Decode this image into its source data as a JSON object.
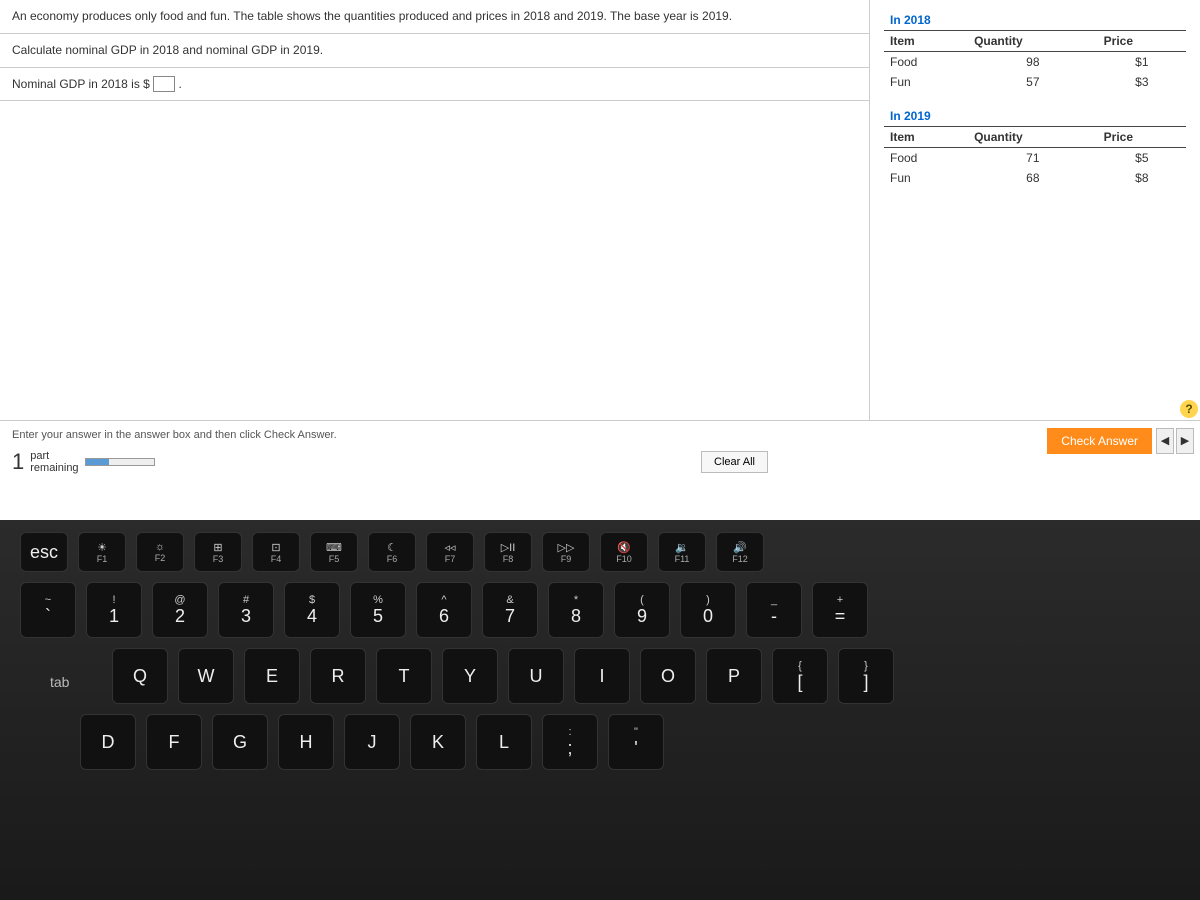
{
  "question": {
    "intro": "An economy produces only food and fun. The table shows the quantities produced and prices in 2018 and 2019. The base year is 2019.",
    "task": "Calculate nominal GDP in 2018 and nominal GDP in 2019.",
    "answer_prompt_prefix": "Nominal GDP in 2018 is $",
    "answer_prompt_suffix": "."
  },
  "tables": {
    "y2018": {
      "title": "In 2018",
      "headers": [
        "Item",
        "Quantity",
        "Price"
      ],
      "rows": [
        [
          "Food",
          "98",
          "$1"
        ],
        [
          "Fun",
          "57",
          "$3"
        ]
      ]
    },
    "y2019": {
      "title": "In 2019",
      "headers": [
        "Item",
        "Quantity",
        "Price"
      ],
      "rows": [
        [
          "Food",
          "71",
          "$5"
        ],
        [
          "Fun",
          "68",
          "$8"
        ]
      ]
    }
  },
  "footer": {
    "instruction": "Enter your answer in the answer box and then click Check Answer.",
    "part_number": "1",
    "part_label_top": "part",
    "part_label_bottom": "remaining",
    "clear_all": "Clear All",
    "check_answer": "Check Answer",
    "prev": "◀",
    "next": "▶",
    "help": "?"
  },
  "keyboard": {
    "fn_row": [
      {
        "top": "",
        "main": "esc",
        "fn": ""
      },
      {
        "top": "☀",
        "main": "",
        "fn": "F1"
      },
      {
        "top": "☼",
        "main": "",
        "fn": "F2"
      },
      {
        "top": "⊞",
        "main": "",
        "fn": "F3"
      },
      {
        "top": "⊡",
        "main": "",
        "fn": "F4"
      },
      {
        "top": "⌨",
        "main": "",
        "fn": "F5"
      },
      {
        "top": "☾",
        "main": "",
        "fn": "F6"
      },
      {
        "top": "◃◃",
        "main": "",
        "fn": "F7"
      },
      {
        "top": "▷II",
        "main": "",
        "fn": "F8"
      },
      {
        "top": "▷▷",
        "main": "",
        "fn": "F9"
      },
      {
        "top": "🔇",
        "main": "",
        "fn": "F10"
      },
      {
        "top": "🔉",
        "main": "",
        "fn": "F11"
      },
      {
        "top": "🔊",
        "main": "",
        "fn": "F12"
      }
    ],
    "num_row": [
      {
        "top": "~",
        "main": "`"
      },
      {
        "top": "!",
        "main": "1"
      },
      {
        "top": "@",
        "main": "2"
      },
      {
        "top": "#",
        "main": "3"
      },
      {
        "top": "$",
        "main": "4"
      },
      {
        "top": "%",
        "main": "5"
      },
      {
        "top": "^",
        "main": "6"
      },
      {
        "top": "&",
        "main": "7"
      },
      {
        "top": "*",
        "main": "8"
      },
      {
        "top": "(",
        "main": "9"
      },
      {
        "top": ")",
        "main": "0"
      },
      {
        "top": "_",
        "main": "-"
      },
      {
        "top": "+",
        "main": "="
      }
    ],
    "q_row": [
      "Q",
      "W",
      "E",
      "R",
      "T",
      "Y",
      "U",
      "I",
      "O",
      "P"
    ],
    "q_row_tail": [
      {
        "top": "{",
        "main": "["
      },
      {
        "top": "}",
        "main": "]"
      }
    ],
    "a_row": [
      "D",
      "F",
      "G",
      "H",
      "J",
      "K",
      "L"
    ],
    "a_row_tail": [
      {
        "top": ":",
        "main": ";"
      },
      {
        "top": "\"",
        "main": "'"
      }
    ],
    "tab_label": "tab"
  },
  "colors": {
    "link_blue": "#0066cc",
    "check_orange": "#ff8c1a",
    "progress_blue": "#5b9bd5",
    "help_yellow": "#ffd54f"
  }
}
